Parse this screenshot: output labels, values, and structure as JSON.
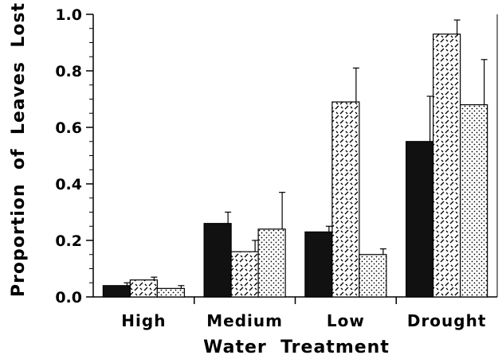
{
  "chart_data": {
    "type": "bar",
    "title": "",
    "xlabel": "Water  Treatment",
    "ylabel": "Proportion  of  Leaves  Lost",
    "categories": [
      "High",
      "Medium",
      "Low",
      "Drought"
    ],
    "ylim": [
      0,
      1.0
    ],
    "yticks": [
      0.0,
      0.2,
      0.4,
      0.6,
      0.8,
      1.0
    ],
    "ytick_labels": [
      "0.0",
      "0.2",
      "0.4",
      "0.6",
      "0.8",
      "1.0"
    ],
    "grid": false,
    "legend": "none",
    "series": [
      {
        "fill": "solid-black",
        "color": "#111111",
        "values": [
          0.04,
          0.26,
          0.23,
          0.55
        ],
        "errors": [
          0.01,
          0.04,
          0.02,
          0.16
        ]
      },
      {
        "fill": "dashed-hatch",
        "color": "#ffffff",
        "values": [
          0.06,
          0.16,
          0.69,
          0.93
        ],
        "errors": [
          0.01,
          0.04,
          0.12,
          0.05
        ]
      },
      {
        "fill": "dotted-stipple",
        "color": "#ffffff",
        "values": [
          0.03,
          0.24,
          0.15,
          0.68
        ],
        "errors": [
          0.01,
          0.13,
          0.02,
          0.16
        ]
      }
    ]
  }
}
